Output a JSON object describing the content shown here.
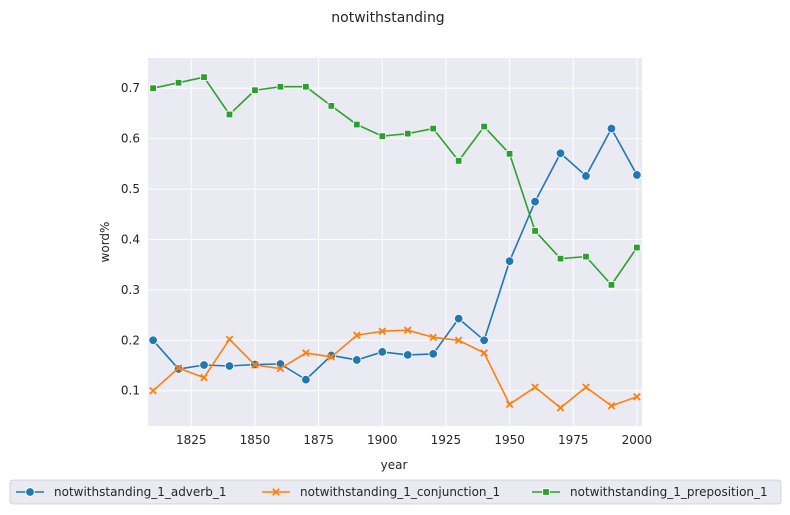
{
  "chart_data": {
    "type": "line",
    "title": "notwithstanding",
    "xlabel": "year",
    "ylabel": "word%",
    "xlim": [
      1808,
      2002
    ],
    "ylim": [
      0.03,
      0.76
    ],
    "xticks": [
      "1825",
      "1850",
      "1875",
      "1900",
      "1925",
      "1950",
      "1975",
      "2000"
    ],
    "yticks": [
      "0.1",
      "0.2",
      "0.3",
      "0.4",
      "0.5",
      "0.6",
      "0.7"
    ],
    "grid": true,
    "legend_position": "bottom",
    "x": [
      1810,
      1820,
      1830,
      1840,
      1850,
      1860,
      1870,
      1880,
      1890,
      1900,
      1910,
      1920,
      1930,
      1940,
      1950,
      1960,
      1970,
      1980,
      1990,
      2000
    ],
    "series": [
      {
        "name": "notwithstanding_1_adverb_1",
        "color": "#1f77b4",
        "marker": "circle",
        "values": [
          0.2,
          0.143,
          0.151,
          0.149,
          0.152,
          0.153,
          0.122,
          0.17,
          0.161,
          0.177,
          0.171,
          0.173,
          0.243,
          0.2,
          0.357,
          0.475,
          0.571,
          0.526,
          0.62,
          0.528
        ]
      },
      {
        "name": "notwithstanding_1_conjunction_1",
        "color": "#ff7f0e",
        "marker": "x",
        "values": [
          0.1,
          0.145,
          0.126,
          0.202,
          0.151,
          0.144,
          0.175,
          0.167,
          0.21,
          0.218,
          0.22,
          0.206,
          0.2,
          0.175,
          0.073,
          0.107,
          0.066,
          0.107,
          0.07,
          0.088
        ]
      },
      {
        "name": "notwithstanding_1_preposition_1",
        "color": "#2ca02c",
        "marker": "square",
        "values": [
          0.7,
          0.711,
          0.722,
          0.648,
          0.696,
          0.703,
          0.703,
          0.665,
          0.628,
          0.605,
          0.61,
          0.62,
          0.556,
          0.624,
          0.57,
          0.417,
          0.362,
          0.366,
          0.31,
          0.384
        ]
      }
    ]
  }
}
